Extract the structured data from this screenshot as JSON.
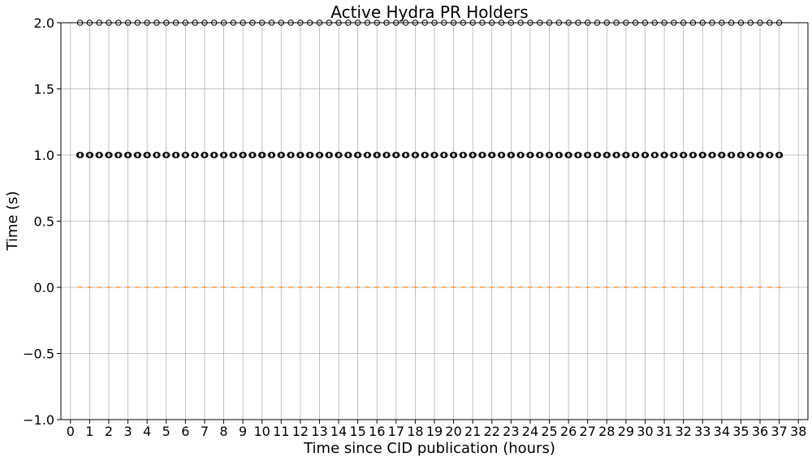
{
  "chart_data": {
    "type": "box",
    "title": "Active Hydra PR Holders",
    "xlabel": "Time since CID publication (hours)",
    "ylabel": "Time (s)",
    "ylim": [
      -1.0,
      2.0
    ],
    "xlim": [
      -0.5,
      38.5
    ],
    "grid": true,
    "y_ticks": [
      -1.0,
      -0.5,
      0.0,
      0.5,
      1.0,
      1.5,
      2.0
    ],
    "y_tick_labels": [
      "−1.0",
      "−0.5",
      "0.0",
      "0.5",
      "1.0",
      "1.5",
      "2.0"
    ],
    "x_ticks": [
      0,
      1,
      2,
      3,
      4,
      5,
      6,
      7,
      8,
      9,
      10,
      11,
      12,
      13,
      14,
      15,
      16,
      17,
      18,
      19,
      20,
      21,
      22,
      23,
      24,
      25,
      26,
      27,
      28,
      29,
      30,
      31,
      32,
      33,
      34,
      35,
      36,
      37,
      38
    ],
    "x_tick_labels": [
      "0",
      "1",
      "2",
      "3",
      "4",
      "5",
      "6",
      "7",
      "8",
      "9",
      "10",
      "11",
      "12",
      "13",
      "14",
      "15",
      "16",
      "17",
      "18",
      "19",
      "20",
      "21",
      "22",
      "23",
      "24",
      "25",
      "26",
      "27",
      "28",
      "29",
      "30",
      "31",
      "32",
      "33",
      "34",
      "35",
      "36",
      "37",
      "38"
    ],
    "box_positions_start": 0.5,
    "box_positions_step": 0.5,
    "box_count": 74,
    "median_value": 0.0,
    "q1": 0.0,
    "q3": 0.0,
    "flier_values": [
      1.0,
      2.0
    ],
    "flier_value_1_offsets": [
      -0.08,
      0.0,
      0.08
    ],
    "flier_value_2_offsets": [
      0.0
    ]
  }
}
